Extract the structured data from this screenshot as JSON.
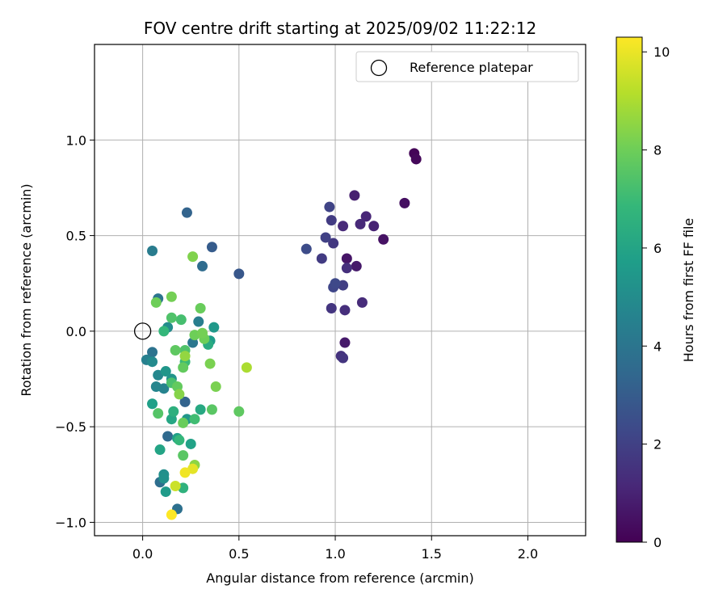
{
  "chart_data": {
    "type": "scatter",
    "title": "FOV centre drift starting at 2025/09/02 11:22:12",
    "xlabel": "Angular distance from reference (arcmin)",
    "ylabel": "Rotation from reference (arcmin)",
    "xlim": [
      -0.25,
      2.3
    ],
    "ylim": [
      -1.07,
      1.5
    ],
    "xticks": [
      "0.0",
      "0.5",
      "1.0",
      "1.5",
      "2.0"
    ],
    "xtick_values": [
      0,
      0.5,
      1.0,
      1.5,
      2.0
    ],
    "yticks": [
      "−1.0",
      "−0.5",
      "0.0",
      "0.5",
      "1.0"
    ],
    "ytick_values": [
      -1.0,
      -0.5,
      0,
      0.5,
      1.0
    ],
    "grid": true,
    "legend": {
      "placement": "top-right",
      "entries": [
        "Reference platepar"
      ]
    },
    "reference_point": {
      "x": 0.0,
      "y": 0.0
    },
    "colorbar": {
      "label": "Hours from first FF file",
      "colormap": "viridis",
      "range": [
        0,
        10.3
      ],
      "ticks": [
        "0",
        "2",
        "4",
        "6",
        "8",
        "10"
      ],
      "tick_values": [
        0,
        2,
        4,
        6,
        8,
        10
      ]
    },
    "colormap_stops": [
      "#440154",
      "#482878",
      "#3e4989",
      "#31688e",
      "#26828e",
      "#1f9e89",
      "#35b779",
      "#6ece58",
      "#b5de2b",
      "#fde725"
    ],
    "points": [
      {
        "x": 1.41,
        "y": 0.93,
        "h": 0.1
      },
      {
        "x": 1.42,
        "y": 0.9,
        "h": 0.2
      },
      {
        "x": 1.36,
        "y": 0.67,
        "h": 0.4
      },
      {
        "x": 1.25,
        "y": 0.48,
        "h": 0.5
      },
      {
        "x": 1.06,
        "y": 0.38,
        "h": 0.6
      },
      {
        "x": 1.11,
        "y": 0.34,
        "h": 0.7
      },
      {
        "x": 1.05,
        "y": -0.06,
        "h": 0.7
      },
      {
        "x": 1.1,
        "y": 0.71,
        "h": 0.9
      },
      {
        "x": 1.2,
        "y": 0.55,
        "h": 1.0
      },
      {
        "x": 1.16,
        "y": 0.6,
        "h": 1.1
      },
      {
        "x": 1.13,
        "y": 0.56,
        "h": 1.2
      },
      {
        "x": 1.04,
        "y": 0.55,
        "h": 1.2
      },
      {
        "x": 1.14,
        "y": 0.15,
        "h": 1.3
      },
      {
        "x": 1.05,
        "y": 0.11,
        "h": 1.4
      },
      {
        "x": 1.06,
        "y": 0.33,
        "h": 1.4
      },
      {
        "x": 1.03,
        "y": -0.13,
        "h": 1.5
      },
      {
        "x": 1.04,
        "y": -0.14,
        "h": 1.6
      },
      {
        "x": 0.98,
        "y": 0.12,
        "h": 1.6
      },
      {
        "x": 0.99,
        "y": 0.46,
        "h": 1.7
      },
      {
        "x": 0.93,
        "y": 0.38,
        "h": 1.8
      },
      {
        "x": 0.98,
        "y": 0.58,
        "h": 1.8
      },
      {
        "x": 1.04,
        "y": 0.24,
        "h": 1.9
      },
      {
        "x": 0.95,
        "y": 0.49,
        "h": 2.0
      },
      {
        "x": 0.97,
        "y": 0.65,
        "h": 2.1
      },
      {
        "x": 0.99,
        "y": 0.23,
        "h": 2.2
      },
      {
        "x": 1.0,
        "y": 0.25,
        "h": 2.3
      },
      {
        "x": 0.85,
        "y": 0.43,
        "h": 2.4
      },
      {
        "x": 0.5,
        "y": 0.3,
        "h": 2.8
      },
      {
        "x": 0.36,
        "y": 0.44,
        "h": 3.0
      },
      {
        "x": 0.23,
        "y": 0.62,
        "h": 3.3
      },
      {
        "x": 0.31,
        "y": 0.34,
        "h": 3.6
      },
      {
        "x": 0.22,
        "y": -0.37,
        "h": 3.3
      },
      {
        "x": 0.13,
        "y": -0.55,
        "h": 3.5
      },
      {
        "x": 0.09,
        "y": -0.79,
        "h": 3.7
      },
      {
        "x": 0.18,
        "y": -0.93,
        "h": 3.8
      },
      {
        "x": 0.05,
        "y": -0.11,
        "h": 3.9
      },
      {
        "x": 0.08,
        "y": 0.17,
        "h": 4.0
      },
      {
        "x": 0.05,
        "y": 0.42,
        "h": 4.3
      },
      {
        "x": 0.26,
        "y": -0.06,
        "h": 4.1
      },
      {
        "x": 0.29,
        "y": 0.05,
        "h": 4.4
      },
      {
        "x": 0.02,
        "y": -0.15,
        "h": 4.5
      },
      {
        "x": 0.11,
        "y": -0.3,
        "h": 4.6
      },
      {
        "x": 0.07,
        "y": -0.29,
        "h": 4.7
      },
      {
        "x": 0.08,
        "y": -0.23,
        "h": 4.8
      },
      {
        "x": 0.05,
        "y": -0.16,
        "h": 4.9
      },
      {
        "x": 0.13,
        "y": 0.02,
        "h": 5.0
      },
      {
        "x": 0.11,
        "y": -0.75,
        "h": 5.1
      },
      {
        "x": 0.11,
        "y": -0.77,
        "h": 5.2
      },
      {
        "x": 0.15,
        "y": -0.25,
        "h": 5.3
      },
      {
        "x": 0.12,
        "y": -0.21,
        "h": 5.4
      },
      {
        "x": 0.23,
        "y": -0.46,
        "h": 5.4
      },
      {
        "x": 0.37,
        "y": 0.02,
        "h": 5.5
      },
      {
        "x": 0.12,
        "y": -0.84,
        "h": 5.6
      },
      {
        "x": 0.35,
        "y": -0.05,
        "h": 5.7
      },
      {
        "x": 0.05,
        "y": -0.38,
        "h": 5.8
      },
      {
        "x": 0.18,
        "y": -0.56,
        "h": 5.8
      },
      {
        "x": 0.25,
        "y": -0.59,
        "h": 5.9
      },
      {
        "x": 0.09,
        "y": -0.62,
        "h": 6.0
      },
      {
        "x": 0.15,
        "y": -0.46,
        "h": 6.1
      },
      {
        "x": 0.3,
        "y": -0.41,
        "h": 6.2
      },
      {
        "x": 0.34,
        "y": -0.07,
        "h": 6.3
      },
      {
        "x": 0.16,
        "y": -0.42,
        "h": 6.5
      },
      {
        "x": 0.21,
        "y": -0.82,
        "h": 6.6
      },
      {
        "x": 0.11,
        "y": 0.0,
        "h": 6.8
      },
      {
        "x": 0.19,
        "y": -0.57,
        "h": 6.8
      },
      {
        "x": 0.22,
        "y": -0.16,
        "h": 7.0
      },
      {
        "x": 0.27,
        "y": -0.46,
        "h": 7.1
      },
      {
        "x": 0.2,
        "y": 0.06,
        "h": 7.2
      },
      {
        "x": 0.15,
        "y": -0.27,
        "h": 7.3
      },
      {
        "x": 0.15,
        "y": 0.07,
        "h": 7.4
      },
      {
        "x": 0.22,
        "y": -0.1,
        "h": 7.4
      },
      {
        "x": 0.08,
        "y": -0.43,
        "h": 7.5
      },
      {
        "x": 0.21,
        "y": -0.65,
        "h": 7.6
      },
      {
        "x": 0.17,
        "y": -0.1,
        "h": 7.7
      },
      {
        "x": 0.36,
        "y": -0.41,
        "h": 7.6
      },
      {
        "x": 0.5,
        "y": -0.42,
        "h": 7.7
      },
      {
        "x": 0.21,
        "y": -0.19,
        "h": 7.8
      },
      {
        "x": 0.18,
        "y": -0.29,
        "h": 7.8
      },
      {
        "x": 0.21,
        "y": -0.48,
        "h": 7.9
      },
      {
        "x": 0.3,
        "y": 0.12,
        "h": 7.9
      },
      {
        "x": 0.32,
        "y": -0.04,
        "h": 8.0
      },
      {
        "x": 0.07,
        "y": 0.15,
        "h": 8.0
      },
      {
        "x": 0.27,
        "y": -0.02,
        "h": 8.0
      },
      {
        "x": 0.15,
        "y": 0.18,
        "h": 8.1
      },
      {
        "x": 0.31,
        "y": -0.01,
        "h": 8.1
      },
      {
        "x": 0.35,
        "y": -0.17,
        "h": 8.2
      },
      {
        "x": 0.38,
        "y": -0.29,
        "h": 8.2
      },
      {
        "x": 0.26,
        "y": 0.39,
        "h": 8.3
      },
      {
        "x": 0.19,
        "y": -0.33,
        "h": 8.4
      },
      {
        "x": 0.27,
        "y": -0.7,
        "h": 8.5
      },
      {
        "x": 0.22,
        "y": -0.13,
        "h": 8.6
      },
      {
        "x": 0.54,
        "y": -0.19,
        "h": 9.0
      },
      {
        "x": 0.17,
        "y": -0.81,
        "h": 9.5
      },
      {
        "x": 0.26,
        "y": -0.72,
        "h": 9.9
      },
      {
        "x": 0.22,
        "y": -0.74,
        "h": 10.1
      },
      {
        "x": 0.15,
        "y": -0.96,
        "h": 10.3
      }
    ]
  }
}
